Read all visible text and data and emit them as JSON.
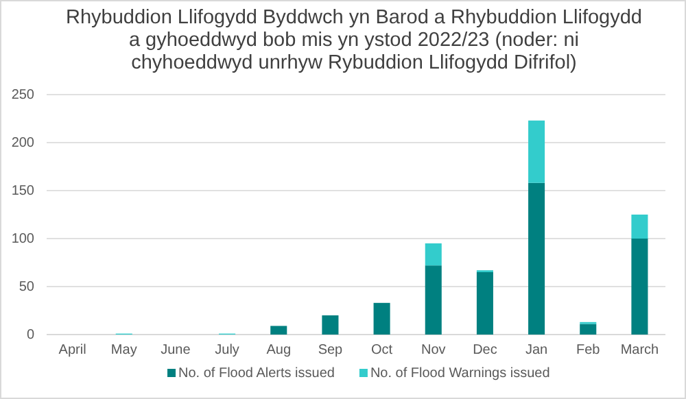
{
  "chart_data": {
    "type": "bar",
    "stacked": true,
    "title": "Rhybuddion Llifogydd Byddwch yn Barod a Rhybuddion Llifogydd a gyhoeddwyd bob mis yn ystod 2022/23 (noder: ni chyhoeddwyd unrhyw Rybuddion Llifogydd Difrifol)",
    "categories": [
      "April",
      "May",
      "June",
      "July",
      "Aug",
      "Sep",
      "Oct",
      "Nov",
      "Dec",
      "Jan",
      "Feb",
      "March"
    ],
    "series": [
      {
        "name": "No. of Flood Alerts issued",
        "color": "#008080",
        "values": [
          0,
          0,
          0,
          0,
          9,
          20,
          33,
          72,
          65,
          158,
          11,
          100
        ]
      },
      {
        "name": "No. of Flood Warnings issued",
        "color": "#33cccc",
        "values": [
          0,
          1,
          0,
          1,
          0,
          0,
          0,
          23,
          2,
          65,
          2,
          25
        ]
      }
    ],
    "ylim": [
      0,
      250
    ],
    "yticks": [
      0,
      50,
      100,
      150,
      200,
      250
    ],
    "grid": "y",
    "legend": "bottom"
  }
}
